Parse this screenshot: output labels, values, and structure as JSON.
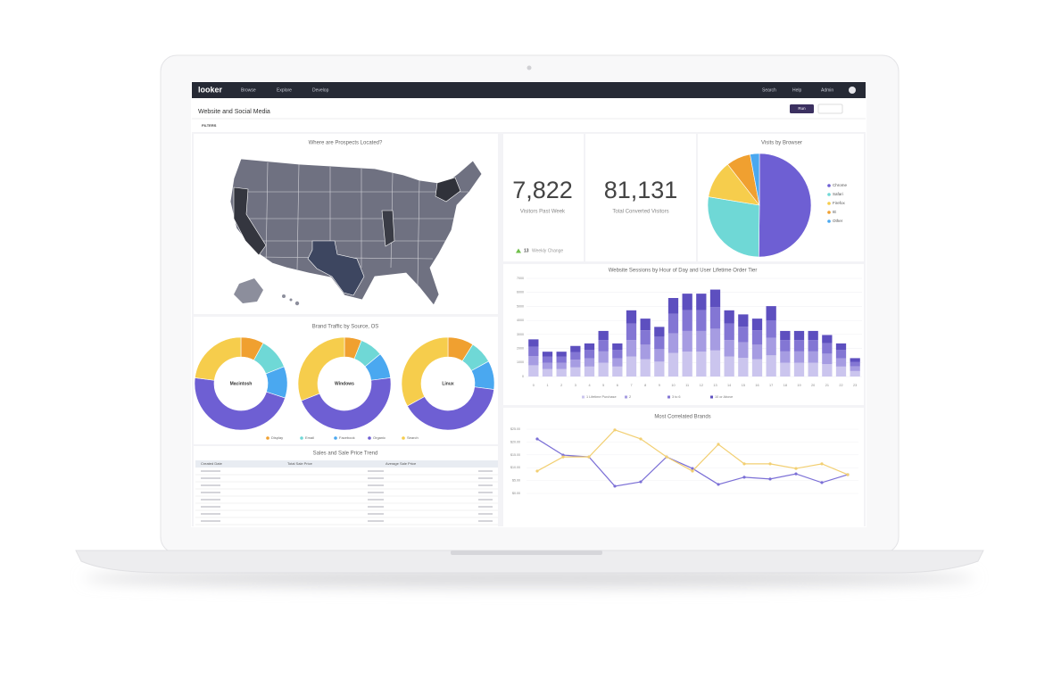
{
  "topbar": {
    "logo": "looker",
    "nav": [
      "Browse",
      "Explore",
      "Develop"
    ],
    "right": [
      "Search",
      "Help",
      "Admin"
    ]
  },
  "header": {
    "title": "Website and Social Media",
    "run": "Run"
  },
  "filters": {
    "label": "FILTERS"
  },
  "map": {
    "title": "Where are Prospects Located?"
  },
  "kpis": [
    {
      "value": "7,822",
      "label": "Visitors Past Week",
      "change": "13",
      "change_label": "Weekly Change"
    },
    {
      "value": "81,131",
      "label": "Total Converted Visitors"
    }
  ],
  "browser_pie": {
    "type": "pie",
    "title": "Visits by Browser",
    "categories": [
      "Chrome",
      "Safari",
      "Firefox",
      "IE",
      "Other"
    ],
    "values": [
      50.2,
      27.4,
      11.9,
      7.6,
      2.9
    ],
    "colors": [
      "#6e5fd3",
      "#6fd8d6",
      "#f6cd4c",
      "#f0a030",
      "#4aa8f0"
    ]
  },
  "brand_traffic": {
    "type": "donut",
    "title": "Brand Traffic by Source, OS",
    "categories": [
      "Display",
      "Email",
      "Facebook",
      "Organic",
      "Search"
    ],
    "colors": [
      "#f0a030",
      "#6fd8d6",
      "#4aa8f0",
      "#6e5fd3",
      "#f6cd4c"
    ],
    "charts": [
      {
        "name": "Macintosh",
        "values": [
          8,
          11,
          11,
          47,
          23
        ]
      },
      {
        "name": "Windows",
        "values": [
          6,
          8,
          9,
          46,
          31
        ]
      },
      {
        "name": "Linux",
        "values": [
          9,
          8,
          10,
          40,
          33
        ]
      }
    ]
  },
  "sales_table": {
    "title": "Sales and Sale Price Trend",
    "columns": [
      "Created Date",
      "Total Sale Price",
      "Average Sale Price"
    ]
  },
  "sessions": {
    "type": "bar",
    "stacked": true,
    "title": "Website Sessions by Hour of Day and User Lifetime Order Tier",
    "categories": [
      "0",
      "1",
      "2",
      "3",
      "4",
      "5",
      "6",
      "7",
      "8",
      "9",
      "10",
      "11",
      "12",
      "13",
      "14",
      "15",
      "16",
      "17",
      "18",
      "19",
      "20",
      "21",
      "22",
      "23"
    ],
    "ylim": [
      0,
      7000
    ],
    "yticks": [
      0,
      1000,
      2000,
      3000,
      4000,
      5000,
      6000,
      7000
    ],
    "grid": true,
    "series": [
      {
        "name": "1 Lifetime Purchase",
        "color": "#cbc5ee",
        "values": [
          800,
          530,
          530,
          650,
          710,
          980,
          710,
          1420,
          1240,
          1060,
          1680,
          1770,
          1770,
          1860,
          1420,
          1330,
          1240,
          1510,
          980,
          980,
          980,
          890,
          710,
          390
        ]
      },
      {
        "name": "2",
        "color": "#a69ce2",
        "values": [
          660,
          440,
          440,
          550,
          590,
          810,
          590,
          1180,
          1030,
          890,
          1400,
          1480,
          1480,
          1550,
          1180,
          1110,
          1030,
          1250,
          810,
          810,
          810,
          740,
          590,
          330
        ]
      },
      {
        "name": "3 to 6",
        "color": "#8376d4",
        "values": [
          660,
          440,
          440,
          550,
          590,
          810,
          590,
          1180,
          1030,
          890,
          1400,
          1480,
          1480,
          1550,
          1180,
          1110,
          1030,
          1250,
          810,
          810,
          810,
          740,
          590,
          330
        ]
      },
      {
        "name": "10 or Above",
        "color": "#5d4fbf",
        "values": [
          530,
          360,
          360,
          430,
          470,
          650,
          470,
          940,
          830,
          700,
          1120,
          1180,
          1180,
          1240,
          940,
          880,
          830,
          1010,
          650,
          650,
          650,
          590,
          470,
          260
        ]
      }
    ]
  },
  "correlated": {
    "type": "line",
    "title": "Most Correlated Brands",
    "categories": [
      null,
      null,
      null,
      null,
      null,
      null,
      null,
      null,
      null,
      null,
      null,
      null,
      null
    ],
    "ylim": [
      0,
      25
    ],
    "yticks": [
      {
        "value": 0,
        "label": "$0.00"
      },
      {
        "value": 5,
        "label": "$5.00"
      },
      {
        "value": 10,
        "label": "$10.00"
      },
      {
        "value": 15,
        "label": "$15.00"
      },
      {
        "value": 20,
        "label": "$20.00"
      },
      {
        "value": 25,
        "label": "$25.00"
      }
    ],
    "series": [
      {
        "color": "#7b6fd6",
        "values": [
          21.2,
          14.9,
          14.2,
          2.8,
          4.5,
          14.2,
          9.7,
          3.5,
          6.3,
          5.6,
          7.6,
          4.2,
          7.3
        ]
      },
      {
        "color": "#f2cf72",
        "values": [
          8.7,
          14.2,
          14.2,
          24.7,
          21.2,
          14.2,
          8.7,
          19.1,
          11.5,
          11.5,
          9.7,
          11.5,
          7.3
        ]
      }
    ]
  }
}
